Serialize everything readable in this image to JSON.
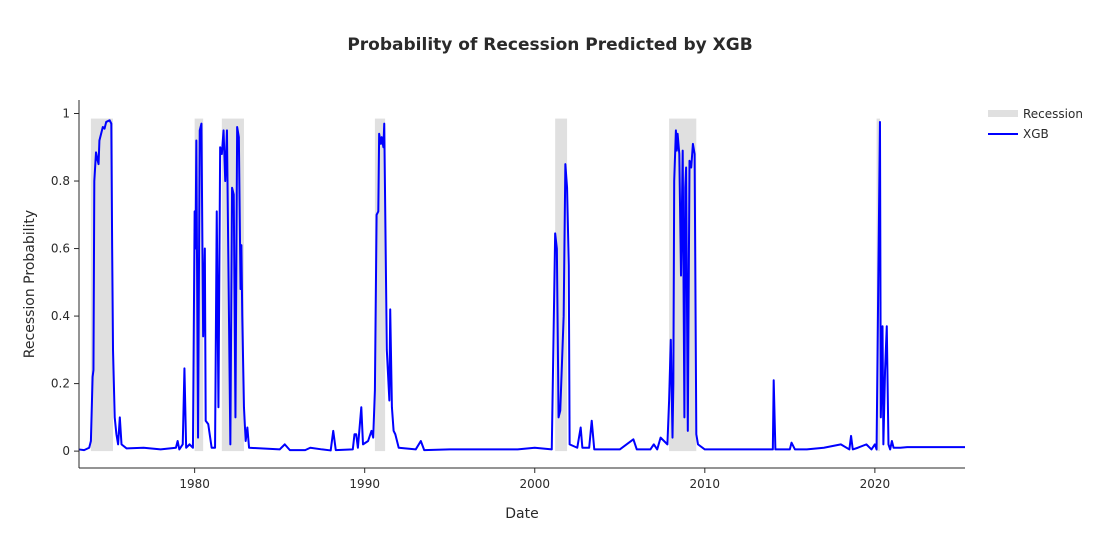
{
  "chart_data": {
    "type": "line",
    "title": "Probability of Recession Predicted by XGB",
    "xlabel": "Date",
    "ylabel": "Recession Probability",
    "xlim": [
      1973.2,
      2025.3
    ],
    "ylim": [
      -0.05,
      1.04
    ],
    "x_ticks": [
      1980,
      1990,
      2000,
      2010,
      2020
    ],
    "y_ticks": [
      0,
      0.2,
      0.4,
      0.6,
      0.8,
      1
    ],
    "y_tick_labels": [
      "0",
      "0.2",
      "0.4",
      "0.6",
      "0.8",
      "1"
    ],
    "grid": false,
    "legend": {
      "position": "top-right",
      "entries": [
        {
          "label": "Recession",
          "kind": "area",
          "color": "#e0e0e0"
        },
        {
          "label": "XGB",
          "kind": "line",
          "color": "#0000ff"
        }
      ]
    },
    "recession_periods": [
      [
        1973.9,
        1975.2
      ],
      [
        1980.0,
        1980.5
      ],
      [
        1981.6,
        1982.9
      ],
      [
        1990.6,
        1991.2
      ],
      [
        2001.2,
        2001.9
      ],
      [
        2007.9,
        2009.5
      ],
      [
        2020.1,
        2020.3
      ]
    ],
    "recession_height": 0.985,
    "series": [
      {
        "name": "XGB",
        "color": "#0000ff",
        "points": [
          [
            1973.2,
            0.005
          ],
          [
            1973.5,
            0.003
          ],
          [
            1973.8,
            0.01
          ],
          [
            1973.9,
            0.03
          ],
          [
            1974.0,
            0.22
          ],
          [
            1974.05,
            0.24
          ],
          [
            1974.1,
            0.8
          ],
          [
            1974.2,
            0.885
          ],
          [
            1974.3,
            0.86
          ],
          [
            1974.35,
            0.85
          ],
          [
            1974.4,
            0.92
          ],
          [
            1974.5,
            0.94
          ],
          [
            1974.6,
            0.96
          ],
          [
            1974.7,
            0.955
          ],
          [
            1974.8,
            0.975
          ],
          [
            1975.0,
            0.98
          ],
          [
            1975.1,
            0.97
          ],
          [
            1975.15,
            0.6
          ],
          [
            1975.2,
            0.3
          ],
          [
            1975.3,
            0.1
          ],
          [
            1975.4,
            0.05
          ],
          [
            1975.5,
            0.02
          ],
          [
            1975.6,
            0.1
          ],
          [
            1975.7,
            0.02
          ],
          [
            1976.0,
            0.008
          ],
          [
            1977.0,
            0.01
          ],
          [
            1978.0,
            0.005
          ],
          [
            1978.9,
            0.01
          ],
          [
            1979.0,
            0.03
          ],
          [
            1979.1,
            0.005
          ],
          [
            1979.3,
            0.02
          ],
          [
            1979.4,
            0.245
          ],
          [
            1979.5,
            0.01
          ],
          [
            1979.7,
            0.02
          ],
          [
            1979.9,
            0.01
          ],
          [
            1980.0,
            0.71
          ],
          [
            1980.05,
            0.6
          ],
          [
            1980.1,
            0.92
          ],
          [
            1980.2,
            0.04
          ],
          [
            1980.3,
            0.95
          ],
          [
            1980.4,
            0.97
          ],
          [
            1980.5,
            0.34
          ],
          [
            1980.6,
            0.6
          ],
          [
            1980.65,
            0.09
          ],
          [
            1980.8,
            0.08
          ],
          [
            1981.0,
            0.01
          ],
          [
            1981.2,
            0.01
          ],
          [
            1981.3,
            0.71
          ],
          [
            1981.4,
            0.13
          ],
          [
            1981.5,
            0.9
          ],
          [
            1981.6,
            0.88
          ],
          [
            1981.7,
            0.95
          ],
          [
            1981.8,
            0.8
          ],
          [
            1981.9,
            0.95
          ],
          [
            1982.1,
            0.02
          ],
          [
            1982.2,
            0.78
          ],
          [
            1982.3,
            0.76
          ],
          [
            1982.4,
            0.1
          ],
          [
            1982.5,
            0.96
          ],
          [
            1982.6,
            0.93
          ],
          [
            1982.7,
            0.48
          ],
          [
            1982.75,
            0.61
          ],
          [
            1982.8,
            0.4
          ],
          [
            1982.9,
            0.13
          ],
          [
            1983.0,
            0.03
          ],
          [
            1983.1,
            0.07
          ],
          [
            1983.2,
            0.01
          ],
          [
            1985.0,
            0.005
          ],
          [
            1985.3,
            0.02
          ],
          [
            1985.6,
            0.003
          ],
          [
            1986.5,
            0.003
          ],
          [
            1986.8,
            0.01
          ],
          [
            1987.5,
            0.005
          ],
          [
            1988.0,
            0.002
          ],
          [
            1988.15,
            0.06
          ],
          [
            1988.3,
            0.003
          ],
          [
            1989.3,
            0.005
          ],
          [
            1989.4,
            0.05
          ],
          [
            1989.5,
            0.05
          ],
          [
            1989.6,
            0.01
          ],
          [
            1989.8,
            0.13
          ],
          [
            1989.9,
            0.02
          ],
          [
            1990.2,
            0.03
          ],
          [
            1990.4,
            0.06
          ],
          [
            1990.5,
            0.04
          ],
          [
            1990.6,
            0.18
          ],
          [
            1990.7,
            0.7
          ],
          [
            1990.8,
            0.71
          ],
          [
            1990.85,
            0.94
          ],
          [
            1990.95,
            0.91
          ],
          [
            1991.0,
            0.93
          ],
          [
            1991.1,
            0.9
          ],
          [
            1991.15,
            0.97
          ],
          [
            1991.3,
            0.3
          ],
          [
            1991.45,
            0.15
          ],
          [
            1991.5,
            0.42
          ],
          [
            1991.6,
            0.13
          ],
          [
            1991.7,
            0.06
          ],
          [
            1991.8,
            0.05
          ],
          [
            1992.0,
            0.01
          ],
          [
            1993.0,
            0.005
          ],
          [
            1993.3,
            0.03
          ],
          [
            1993.5,
            0.003
          ],
          [
            1995.0,
            0.005
          ],
          [
            1997.0,
            0.005
          ],
          [
            1999.0,
            0.005
          ],
          [
            2000.0,
            0.01
          ],
          [
            2001.0,
            0.005
          ],
          [
            2001.2,
            0.645
          ],
          [
            2001.3,
            0.6
          ],
          [
            2001.4,
            0.1
          ],
          [
            2001.5,
            0.12
          ],
          [
            2001.7,
            0.4
          ],
          [
            2001.8,
            0.85
          ],
          [
            2001.9,
            0.78
          ],
          [
            2002.0,
            0.55
          ],
          [
            2002.05,
            0.02
          ],
          [
            2002.5,
            0.01
          ],
          [
            2002.7,
            0.07
          ],
          [
            2002.8,
            0.01
          ],
          [
            2003.2,
            0.01
          ],
          [
            2003.35,
            0.09
          ],
          [
            2003.5,
            0.005
          ],
          [
            2005.0,
            0.005
          ],
          [
            2005.8,
            0.035
          ],
          [
            2006.0,
            0.005
          ],
          [
            2006.8,
            0.005
          ],
          [
            2007.0,
            0.02
          ],
          [
            2007.2,
            0.005
          ],
          [
            2007.4,
            0.04
          ],
          [
            2007.6,
            0.03
          ],
          [
            2007.8,
            0.02
          ],
          [
            2007.9,
            0.15
          ],
          [
            2008.0,
            0.33
          ],
          [
            2008.1,
            0.04
          ],
          [
            2008.15,
            0.2
          ],
          [
            2008.2,
            0.8
          ],
          [
            2008.3,
            0.95
          ],
          [
            2008.35,
            0.89
          ],
          [
            2008.4,
            0.94
          ],
          [
            2008.5,
            0.88
          ],
          [
            2008.6,
            0.52
          ],
          [
            2008.7,
            0.89
          ],
          [
            2008.8,
            0.1
          ],
          [
            2008.85,
            0.78
          ],
          [
            2008.9,
            0.84
          ],
          [
            2009.0,
            0.06
          ],
          [
            2009.1,
            0.86
          ],
          [
            2009.2,
            0.84
          ],
          [
            2009.3,
            0.91
          ],
          [
            2009.4,
            0.88
          ],
          [
            2009.5,
            0.05
          ],
          [
            2009.6,
            0.02
          ],
          [
            2010.0,
            0.005
          ],
          [
            2011.0,
            0.005
          ],
          [
            2012.0,
            0.005
          ],
          [
            2013.0,
            0.005
          ],
          [
            2014.0,
            0.005
          ],
          [
            2014.05,
            0.21
          ],
          [
            2014.15,
            0.005
          ],
          [
            2015.0,
            0.005
          ],
          [
            2015.1,
            0.025
          ],
          [
            2015.3,
            0.005
          ],
          [
            2016.0,
            0.005
          ],
          [
            2017.0,
            0.01
          ],
          [
            2018.0,
            0.02
          ],
          [
            2018.5,
            0.005
          ],
          [
            2018.6,
            0.045
          ],
          [
            2018.7,
            0.005
          ],
          [
            2019.0,
            0.01
          ],
          [
            2019.5,
            0.02
          ],
          [
            2019.8,
            0.005
          ],
          [
            2020.0,
            0.02
          ],
          [
            2020.1,
            0.005
          ],
          [
            2020.2,
            0.5
          ],
          [
            2020.3,
            0.975
          ],
          [
            2020.35,
            0.1
          ],
          [
            2020.45,
            0.37
          ],
          [
            2020.5,
            0.02
          ],
          [
            2020.6,
            0.24
          ],
          [
            2020.7,
            0.37
          ],
          [
            2020.8,
            0.02
          ],
          [
            2020.9,
            0.005
          ],
          [
            2021.0,
            0.03
          ],
          [
            2021.1,
            0.01
          ],
          [
            2021.5,
            0.01
          ],
          [
            2021.9,
            0.012
          ],
          [
            2025.3,
            0.012
          ]
        ]
      }
    ]
  }
}
